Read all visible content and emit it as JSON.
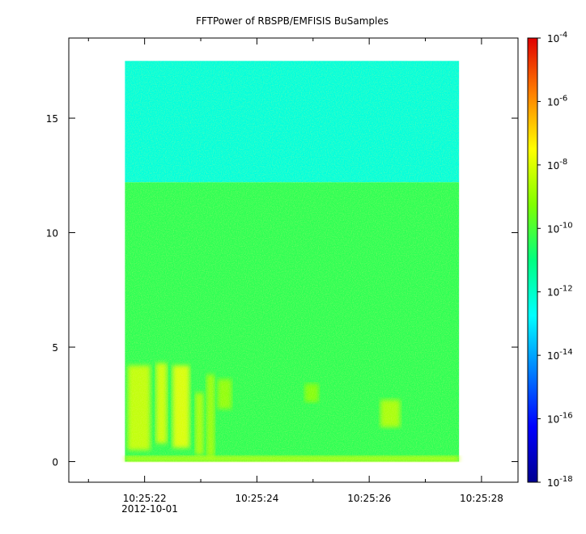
{
  "chart_data": {
    "type": "heatmap",
    "title": "FFTPower of RBSPB/EMFISIS  BuSamples",
    "xlabel": "",
    "ylabel": "",
    "x_axis": {
      "ticks": [
        {
          "label": "10:25:22",
          "value": 22
        },
        {
          "label": "10:25:24",
          "value": 24
        },
        {
          "label": "10:25:26",
          "value": 26
        },
        {
          "label": "10:25:28",
          "value": 28
        }
      ],
      "minor_ticks": [
        21,
        23,
        25,
        27
      ],
      "date_label": "2012-10-01",
      "range_seconds": [
        20.65,
        28.65
      ]
    },
    "y_axis": {
      "ticks": [
        0,
        5,
        10,
        15
      ],
      "range": [
        -0.9,
        18.5
      ]
    },
    "data_extent": {
      "time_start_seconds": 21.65,
      "time_end_seconds": 27.6,
      "freq_min": 0,
      "freq_max": 17.5
    },
    "bands": [
      {
        "freq_from": 12.2,
        "freq_to": 17.5,
        "log10_power": -12.3
      },
      {
        "freq_from": 0.0,
        "freq_to": 12.2,
        "log10_power": -10.4
      }
    ],
    "hotspots": [
      {
        "t_from": 21.7,
        "t_to": 22.1,
        "f_from": 0.5,
        "f_to": 4.2,
        "log10_power": -8.0
      },
      {
        "t_from": 22.2,
        "t_to": 22.4,
        "f_from": 0.8,
        "f_to": 4.3,
        "log10_power": -7.8
      },
      {
        "t_from": 22.5,
        "t_to": 22.8,
        "f_from": 0.6,
        "f_to": 4.2,
        "log10_power": -7.6
      },
      {
        "t_from": 22.9,
        "t_to": 23.05,
        "f_from": 0.3,
        "f_to": 3.0,
        "log10_power": -8.4
      },
      {
        "t_from": 23.1,
        "t_to": 23.25,
        "f_from": 0.2,
        "f_to": 3.8,
        "log10_power": -8.6
      },
      {
        "t_from": 23.3,
        "t_to": 23.55,
        "f_from": 2.3,
        "f_to": 3.6,
        "log10_power": -8.8
      },
      {
        "t_from": 24.85,
        "t_to": 25.1,
        "f_from": 2.6,
        "f_to": 3.4,
        "log10_power": -9.0
      },
      {
        "t_from": 26.2,
        "t_to": 26.55,
        "f_from": 1.5,
        "f_to": 2.7,
        "log10_power": -8.4
      },
      {
        "t_from": 21.65,
        "t_to": 27.6,
        "f_from": 0.0,
        "f_to": 0.25,
        "log10_power": -8.2
      }
    ],
    "colorbar": {
      "scale": "log",
      "min_exponent": -18,
      "max_exponent": -4,
      "tick_exponents": [
        -4,
        -6,
        -8,
        -10,
        -12,
        -14,
        -16,
        -18
      ],
      "colormap": "rainbow"
    },
    "grid": false,
    "legend": "none"
  }
}
